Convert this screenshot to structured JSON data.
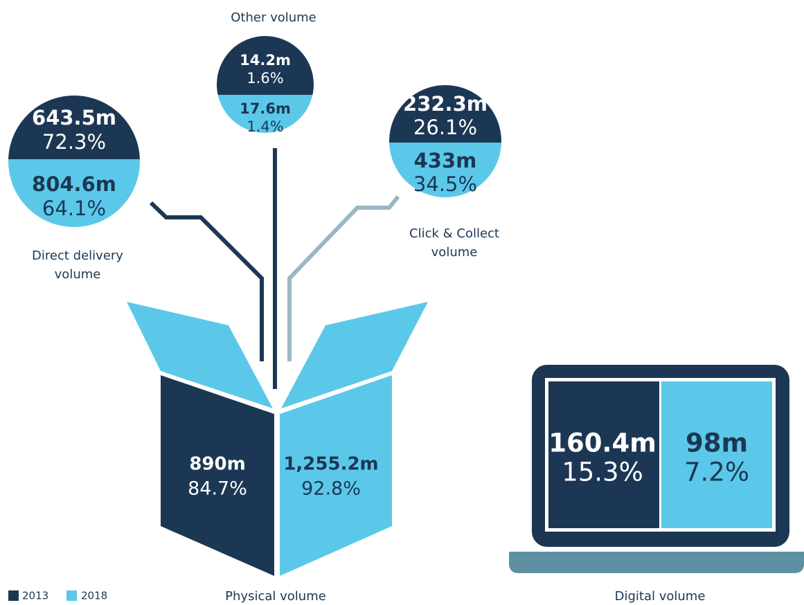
{
  "legend": [
    "2013",
    "2018"
  ],
  "direct_delivery": {
    "label": [
      "Direct delivery",
      "volume"
    ],
    "2013": {
      "value": "643.5m",
      "share": "72.3%"
    },
    "2018": {
      "value": "804.6m",
      "share": "64.1%"
    }
  },
  "other": {
    "label": [
      "Other volume"
    ],
    "2013": {
      "value": "14.2m",
      "share": "1.6%"
    },
    "2018": {
      "value": "17.6m",
      "share": "1.4%"
    }
  },
  "click_collect": {
    "label": [
      "Click & Collect",
      "volume"
    ],
    "2013": {
      "value": "232.3m",
      "share": "26.1%"
    },
    "2018": {
      "value": "433m",
      "share": "34.5%"
    }
  },
  "physical": {
    "label": [
      "Physical volume"
    ],
    "2013": {
      "value": "890m",
      "share": "84.7%"
    },
    "2018": {
      "value": "1,255.2m",
      "share": "92.8%"
    }
  },
  "digital": {
    "label": [
      "Digital volume"
    ],
    "2013": {
      "value": "160.4m",
      "share": "15.3%"
    },
    "2018": {
      "value": "98m",
      "share": "7.2%"
    }
  }
}
